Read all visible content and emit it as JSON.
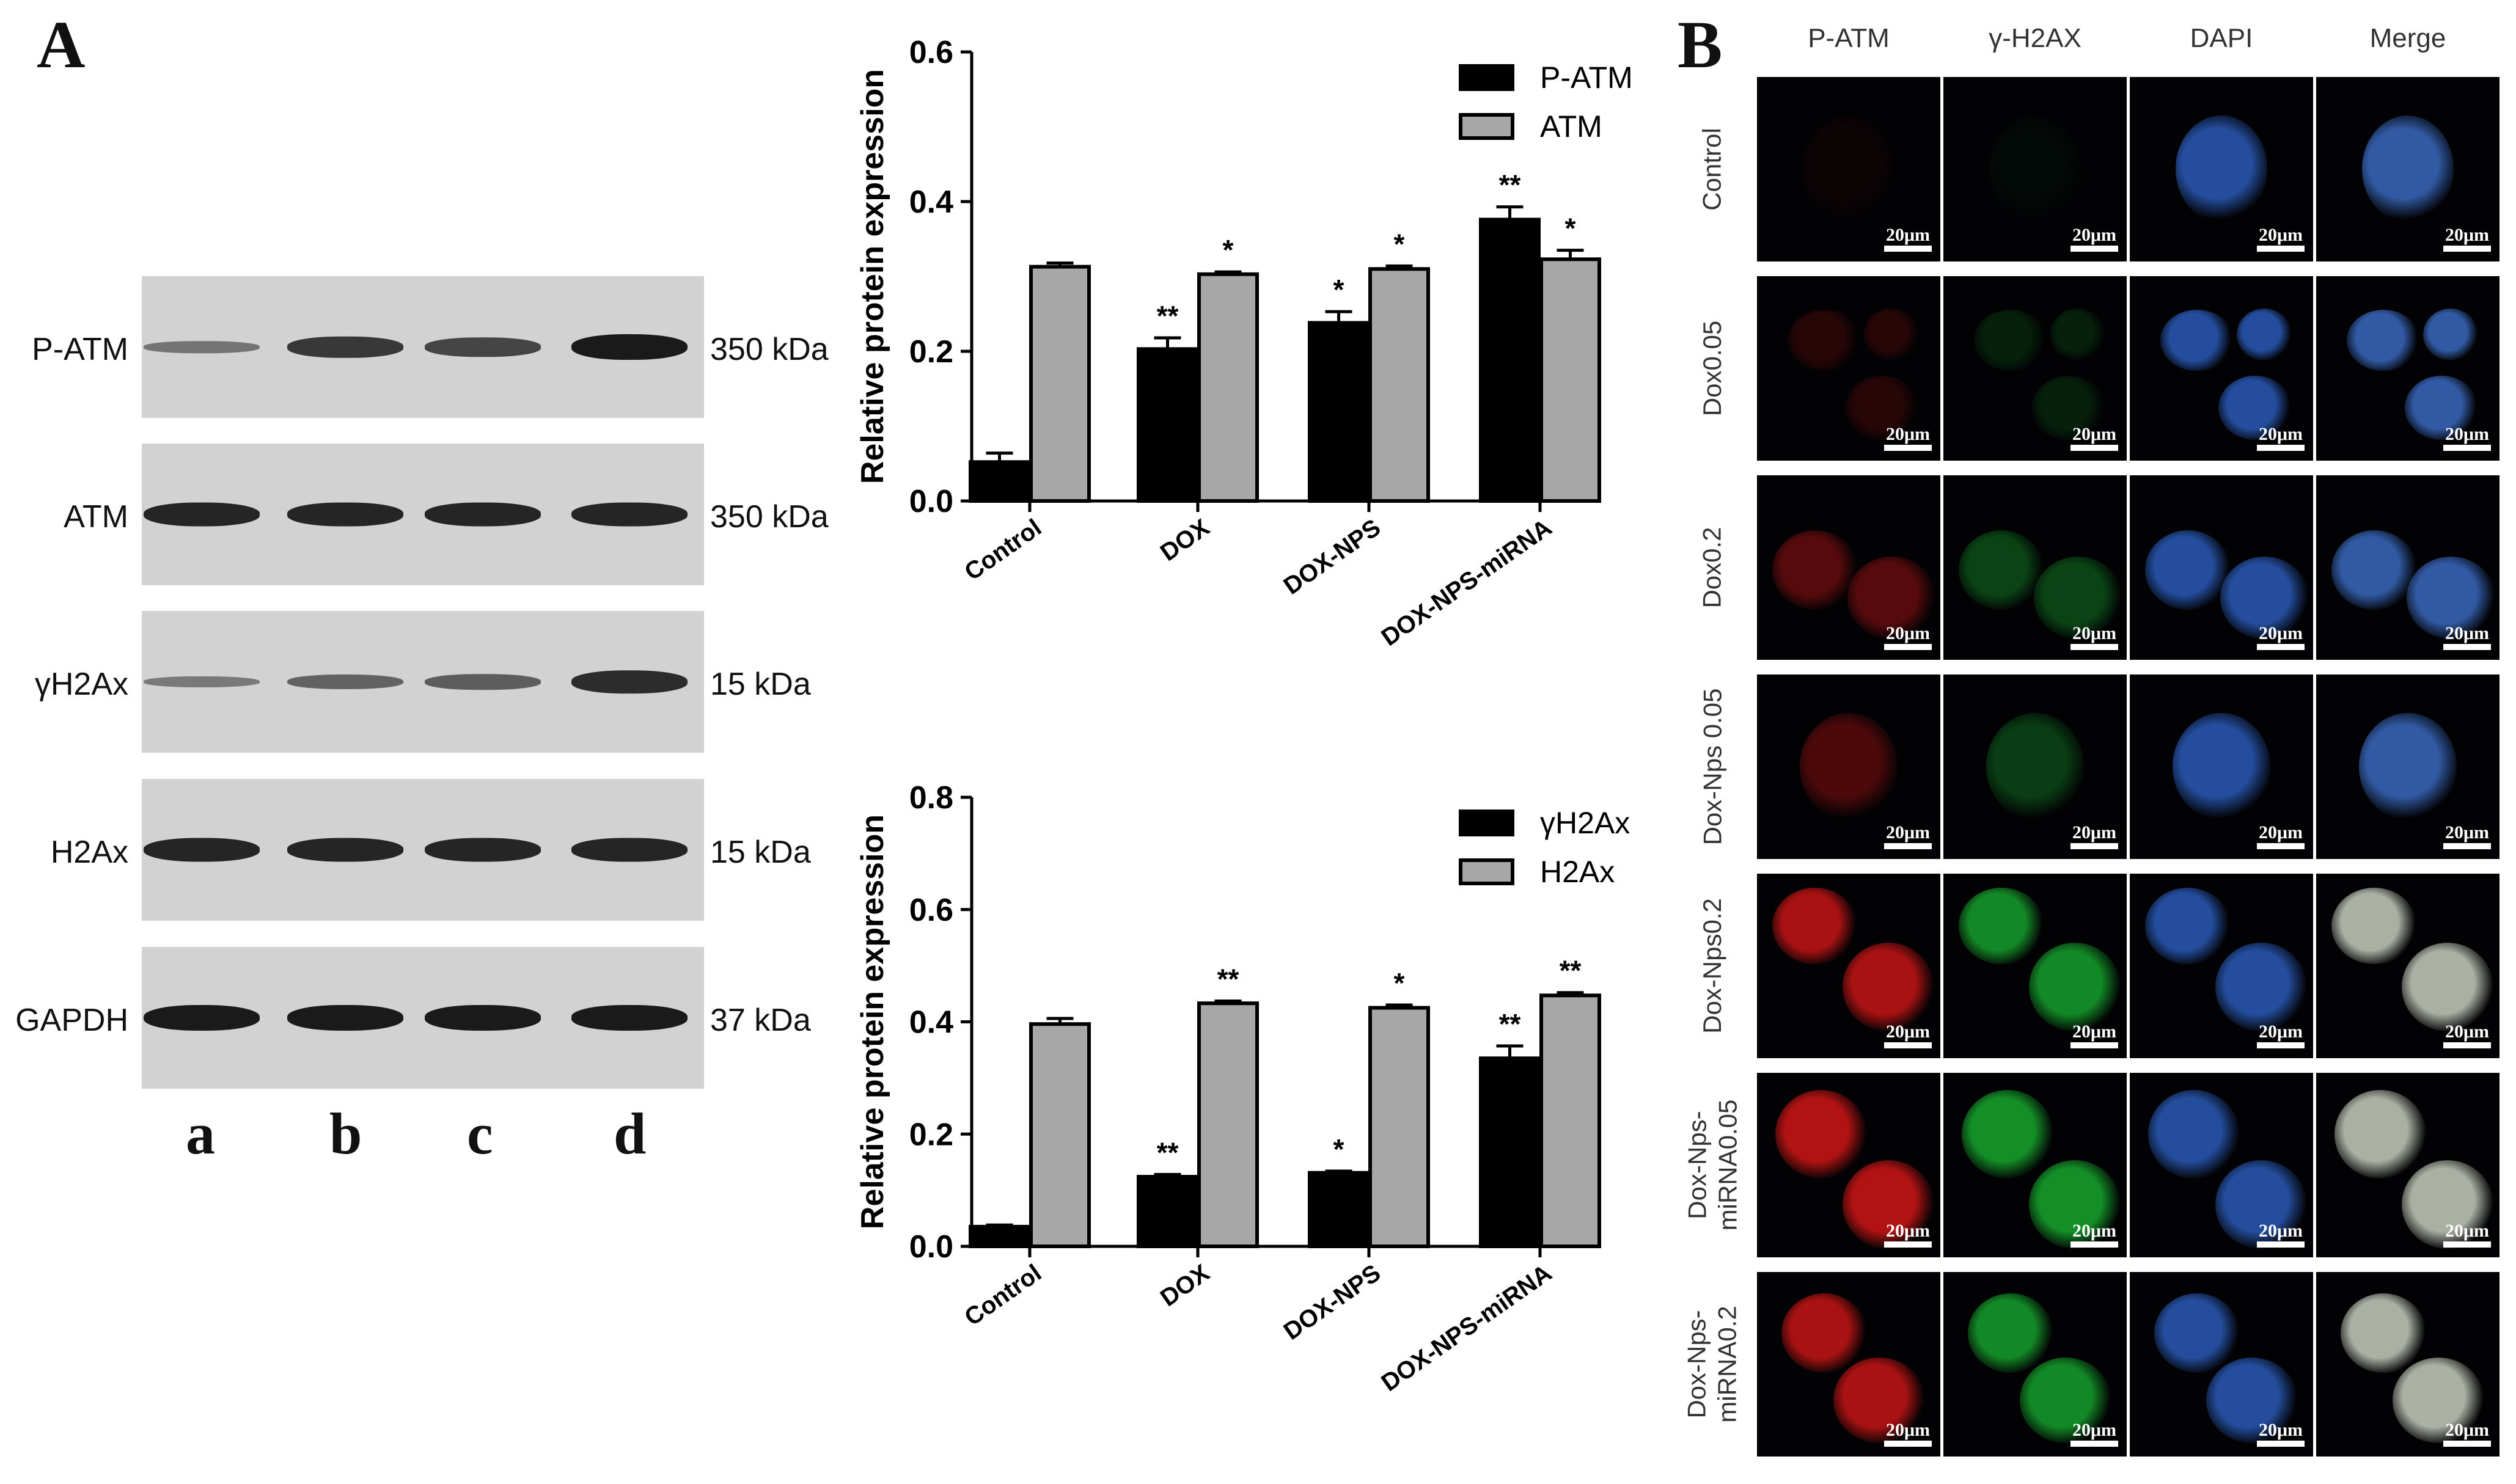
{
  "panels": {
    "a": "A",
    "b": "B"
  },
  "blot": {
    "rows": [
      {
        "label": "P-ATM",
        "kda": "350 kDa",
        "intensity": [
          0.25,
          0.75,
          0.65,
          1.0
        ]
      },
      {
        "label": "ATM",
        "kda": "350 kDa",
        "intensity": [
          0.9,
          0.9,
          0.9,
          0.9
        ]
      },
      {
        "label": "γH2Ax",
        "kda": "15 kDa",
        "intensity": [
          0.2,
          0.4,
          0.45,
          0.85
        ]
      },
      {
        "label": "H2Ax",
        "kda": "15 kDa",
        "intensity": [
          0.9,
          0.9,
          0.9,
          0.9
        ]
      },
      {
        "label": "GAPDH",
        "kda": "37 kDa",
        "intensity": [
          1.0,
          1.0,
          1.0,
          1.0
        ]
      }
    ],
    "lanes": [
      "a",
      "b",
      "c",
      "d"
    ]
  },
  "chart_data": [
    {
      "type": "bar",
      "ylabel": "Relative protein expression",
      "ylim": [
        0,
        0.6
      ],
      "yticks": [
        "0.0",
        "0.2",
        "0.4",
        "0.6"
      ],
      "categories": [
        "Control",
        "DOX",
        "DOX-NPS",
        "DOX-NPS-miRNA"
      ],
      "series": [
        {
          "name": "P-ATM",
          "color": "#000000",
          "values": [
            0.052,
            0.203,
            0.238,
            0.376
          ],
          "errors": [
            0.012,
            0.015,
            0.015,
            0.017
          ],
          "sig": [
            "",
            "**",
            "*",
            "**"
          ]
        },
        {
          "name": "ATM",
          "color": "#a7a7a7",
          "values": [
            0.313,
            0.303,
            0.31,
            0.323
          ],
          "errors": [
            0.005,
            0.003,
            0.004,
            0.012
          ],
          "sig": [
            "",
            "*",
            "*",
            "*"
          ]
        }
      ],
      "legend": "top-right"
    },
    {
      "type": "bar",
      "ylabel": "Relative protein expression",
      "ylim": [
        0,
        0.8
      ],
      "yticks": [
        "0.0",
        "0.2",
        "0.4",
        "0.6",
        "0.8"
      ],
      "categories": [
        "Control",
        "DOX",
        "DOX-NPS",
        "DOX-NPS-miRNA"
      ],
      "series": [
        {
          "name": "γH2Ax",
          "color": "#000000",
          "values": [
            0.035,
            0.124,
            0.131,
            0.335
          ],
          "errors": [
            0.003,
            0.004,
            0.003,
            0.022
          ],
          "sig": [
            "",
            "**",
            "*",
            "**"
          ]
        },
        {
          "name": "H2Ax",
          "color": "#a7a7a7",
          "values": [
            0.396,
            0.433,
            0.425,
            0.447
          ],
          "errors": [
            0.01,
            0.004,
            0.005,
            0.005
          ],
          "sig": [
            "",
            "**",
            "*",
            "**"
          ]
        }
      ],
      "legend": "top-right"
    }
  ],
  "microscopy": {
    "columns": [
      "P-ATM",
      "γ-H2AX",
      "DAPI",
      "Merge"
    ],
    "rows": [
      "Control",
      "Dox0.05",
      "Dox0.2",
      "Dox-Nps 0.05",
      "Dox-Nps0.2",
      "Dox-Nps-\nmiRNA0.05",
      "Dox-Nps-\nmiRNA0.2"
    ],
    "scale_bar": "20μm",
    "signal_levels": [
      0.05,
      0.2,
      0.45,
      0.4,
      0.9,
      0.95,
      0.9
    ],
    "colors": {
      "p_atm": "#d01616",
      "h2ax": "#18b030",
      "dapi": "#2a5bb8"
    }
  }
}
